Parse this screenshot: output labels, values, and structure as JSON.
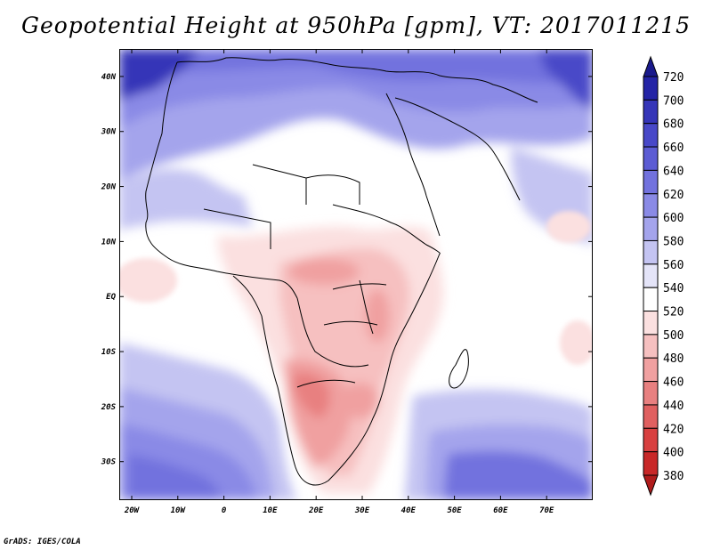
{
  "title": "Geopotential Height at 950hPa [gpm], VT: 2017011215",
  "credit": "GrADS: IGES/COLA",
  "map": {
    "variable": "Geopotential Height",
    "level": "950hPa",
    "units": "gpm",
    "valid_time": "2017011215",
    "lon_labels": [
      "20W",
      "10W",
      "0",
      "10E",
      "20E",
      "30E",
      "40E",
      "50E",
      "60E",
      "70E"
    ],
    "lat_labels": [
      "40N",
      "30N",
      "20N",
      "10N",
      "EQ",
      "10S",
      "20S",
      "30S"
    ]
  },
  "colorbar": {
    "levels": [
      "720",
      "700",
      "680",
      "660",
      "640",
      "620",
      "600",
      "580",
      "560",
      "540",
      "520",
      "500",
      "480",
      "460",
      "440",
      "420",
      "400",
      "380"
    ],
    "colors": [
      "#1a1a8c",
      "#2424a6",
      "#3535b8",
      "#4848c8",
      "#5c5cd4",
      "#7272de",
      "#8a8ae6",
      "#a4a4ec",
      "#c4c4f2",
      "#e4e4f8",
      "#ffffff",
      "#fbe0e0",
      "#f6c0c0",
      "#f0a0a0",
      "#e88080",
      "#e06060",
      "#d84040",
      "#c82828",
      "#b01c1c"
    ]
  }
}
